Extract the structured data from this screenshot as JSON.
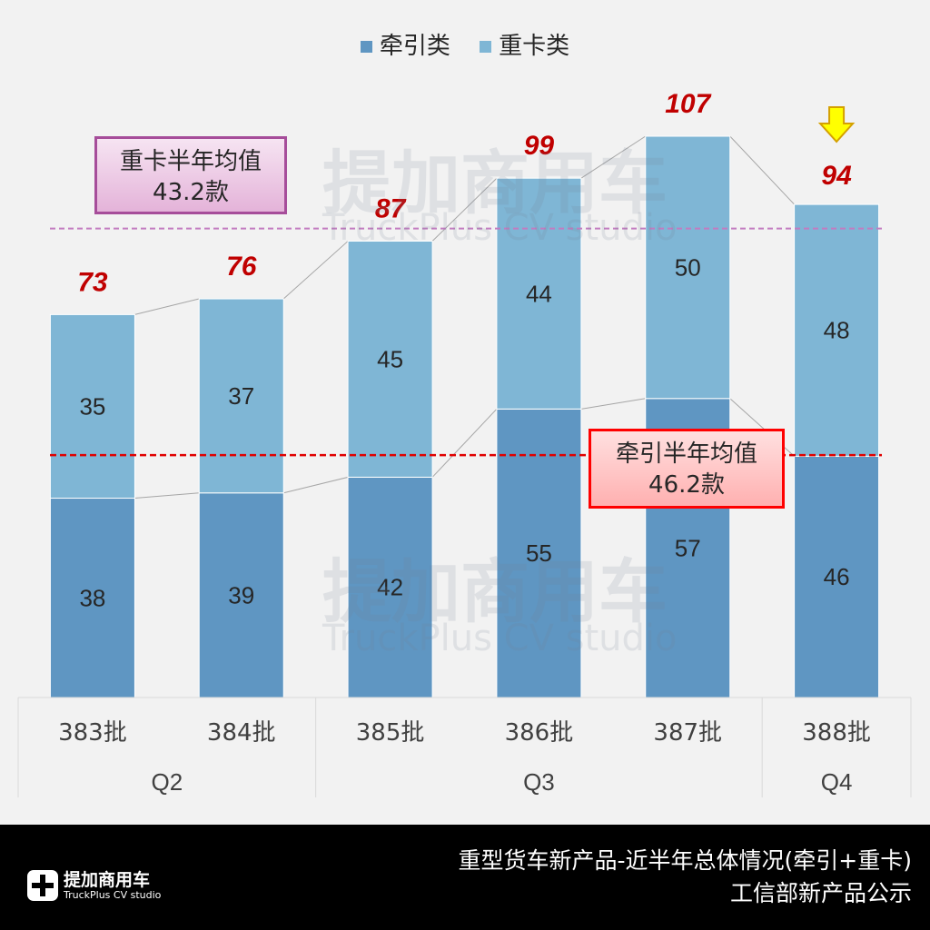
{
  "chart_data": {
    "type": "bar",
    "stacked": true,
    "categories": [
      "383批",
      "384批",
      "385批",
      "386批",
      "387批",
      "388批"
    ],
    "groups": [
      {
        "label": "Q2",
        "count": 2
      },
      {
        "label": "Q3",
        "count": 3
      },
      {
        "label": "Q4",
        "count": 1
      }
    ],
    "series": [
      {
        "name": "牵引类",
        "color": "#5f96c2",
        "values": [
          38,
          39,
          42,
          55,
          57,
          46
        ]
      },
      {
        "name": "重卡类",
        "color": "#7fb6d5",
        "values": [
          35,
          37,
          45,
          44,
          50,
          48
        ]
      }
    ],
    "totals": [
      73,
      76,
      87,
      99,
      107,
      94
    ],
    "ylim": [
      0,
      107
    ],
    "legend_position": "top",
    "grid": false,
    "reference_lines": [
      {
        "label_line1": "重卡半年均值",
        "label_line2": "43.2款",
        "value": 43.2,
        "color": "#c27bc0"
      },
      {
        "label_line1": "牵引半年均值",
        "label_line2": "46.2款",
        "value": 46.2,
        "color": "#e00000"
      }
    ]
  },
  "watermark": {
    "cn": "提加商用车",
    "en": "TruckPlus  CV studio"
  },
  "footer": {
    "title_line1": "重型货车新产品-近半年总体情况(牵引+重卡)",
    "title_line2": "工信部新产品公示",
    "logo_cn": "提加商用车",
    "logo_en": "TruckPlus CV studio"
  }
}
